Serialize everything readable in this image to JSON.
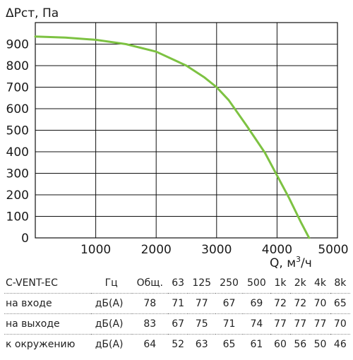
{
  "chart_data": {
    "type": "line",
    "ylabel": "ΔPст, Па",
    "xlabel": "Q, м³/ч",
    "xlabel_main": "Q, м",
    "xlabel_sup": "3",
    "xlabel_tail": "/ч",
    "xlim": [
      0,
      5000
    ],
    "ylim": [
      0,
      1000
    ],
    "x_ticks": [
      1000,
      2000,
      3000,
      4000,
      5000
    ],
    "y_ticks": [
      0,
      100,
      200,
      300,
      400,
      500,
      600,
      700,
      800,
      900
    ],
    "grid": true,
    "series": [
      {
        "color": "#7dc242",
        "points": [
          [
            0,
            935
          ],
          [
            500,
            930
          ],
          [
            1000,
            920
          ],
          [
            1500,
            900
          ],
          [
            2000,
            865
          ],
          [
            2500,
            800
          ],
          [
            2800,
            745
          ],
          [
            3000,
            700
          ],
          [
            3200,
            640
          ],
          [
            3500,
            520
          ],
          [
            3800,
            395
          ],
          [
            4000,
            290
          ],
          [
            4200,
            185
          ],
          [
            4400,
            70
          ],
          [
            4530,
            0
          ]
        ]
      }
    ]
  },
  "table": {
    "header": [
      "C-VENT-EC",
      "Гц",
      "Общ.",
      "63",
      "125",
      "250",
      "500",
      "1k",
      "2k",
      "4k",
      "8k"
    ],
    "rows": [
      {
        "label": "на входе",
        "unit": "дБ(А)",
        "values": [
          "78",
          "71",
          "77",
          "67",
          "69",
          "72",
          "72",
          "70",
          "65"
        ]
      },
      {
        "label": "на выходе",
        "unit": "дБ(А)",
        "values": [
          "83",
          "67",
          "75",
          "71",
          "74",
          "77",
          "77",
          "77",
          "70"
        ]
      },
      {
        "label": "к окружению",
        "unit": "дБ(А)",
        "values": [
          "64",
          "52",
          "63",
          "65",
          "61",
          "60",
          "56",
          "50",
          "46"
        ]
      }
    ]
  }
}
